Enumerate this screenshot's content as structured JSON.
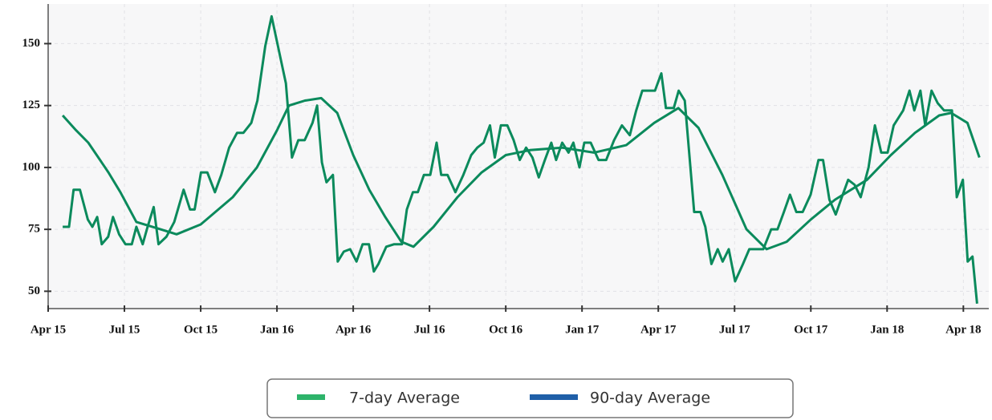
{
  "chart_data": {
    "type": "line",
    "xlim": [
      0,
      37
    ],
    "ylim": [
      43,
      166
    ],
    "xticks": [
      {
        "value": 0,
        "label": "Apr 15"
      },
      {
        "value": 3,
        "label": "Jul 15"
      },
      {
        "value": 6,
        "label": "Oct 15"
      },
      {
        "value": 9,
        "label": "Jan 16"
      },
      {
        "value": 12,
        "label": "Apr 16"
      },
      {
        "value": 15,
        "label": "Jul 16"
      },
      {
        "value": 18,
        "label": "Oct 16"
      },
      {
        "value": 21,
        "label": "Jan 17"
      },
      {
        "value": 24,
        "label": "Apr 17"
      },
      {
        "value": 27,
        "label": "Jul 17"
      },
      {
        "value": 30,
        "label": "Oct 17"
      },
      {
        "value": 33,
        "label": "Jan 18"
      },
      {
        "value": 36,
        "label": "Apr 18"
      }
    ],
    "yticks": [
      50,
      75,
      100,
      125,
      150
    ],
    "grid": true,
    "legend": "bottom",
    "series": [
      {
        "name": "7-day Average",
        "color": "#0b8a5c",
        "legend_swatch_color": "#2db36a",
        "x": [
          0.57,
          0.82,
          1.0,
          1.25,
          1.56,
          1.74,
          1.93,
          2.11,
          2.36,
          2.55,
          2.79,
          3.04,
          3.29,
          3.47,
          3.72,
          3.91,
          4.15,
          4.34,
          4.65,
          4.96,
          5.33,
          5.58,
          5.76,
          6.01,
          6.26,
          6.56,
          6.81,
          7.12,
          7.43,
          7.68,
          7.99,
          8.23,
          8.54,
          8.79,
          9.04,
          9.35,
          9.59,
          9.84,
          10.09,
          10.4,
          10.58,
          10.77,
          10.95,
          11.2,
          11.39,
          11.63,
          11.88,
          12.13,
          12.37,
          12.62,
          12.81,
          12.99,
          13.3,
          13.61,
          13.92,
          14.11,
          14.35,
          14.54,
          14.78,
          15.03,
          15.28,
          15.46,
          15.71,
          16.02,
          16.33,
          16.64,
          16.88,
          17.13,
          17.38,
          17.57,
          17.81,
          18.06,
          18.31,
          18.55,
          18.8,
          19.05,
          19.3,
          19.54,
          19.79,
          19.98,
          20.22,
          20.47,
          20.66,
          20.9,
          21.09,
          21.34,
          21.65,
          21.95,
          22.26,
          22.57,
          22.88,
          23.13,
          23.37,
          23.62,
          23.87,
          24.12,
          24.3,
          24.61,
          24.8,
          25.04,
          25.23,
          25.41,
          25.66,
          25.85,
          26.09,
          26.34,
          26.53,
          26.77,
          27.02,
          27.33,
          27.58,
          27.88,
          28.13,
          28.44,
          28.69,
          28.94,
          29.18,
          29.43,
          29.68,
          29.99,
          30.3,
          30.48,
          30.73,
          30.98,
          31.22,
          31.47,
          31.72,
          31.96,
          32.27,
          32.52,
          32.77,
          33.02,
          33.26,
          33.63,
          33.88,
          34.07,
          34.31,
          34.5,
          34.75,
          34.99,
          35.24,
          35.55,
          35.74,
          35.98,
          36.17,
          36.36,
          36.54
        ],
        "values": [
          76,
          76,
          91,
          91,
          79,
          76,
          80,
          69,
          72,
          80,
          73,
          69,
          69,
          76,
          69,
          76,
          84,
          69,
          72,
          78,
          91,
          83,
          83,
          98,
          98,
          90,
          97,
          108,
          114,
          114,
          118,
          127,
          149,
          161,
          149,
          134,
          104,
          111,
          111,
          118,
          125,
          102,
          94,
          97,
          62,
          66,
          67,
          62,
          69,
          69,
          58,
          61,
          68,
          69,
          69,
          83,
          90,
          90,
          97,
          97,
          110,
          97,
          97,
          90,
          97,
          105,
          108,
          110,
          117,
          104,
          117,
          117,
          111,
          103,
          108,
          104,
          96,
          103,
          110,
          103,
          110,
          106,
          110,
          100,
          110,
          110,
          103,
          103,
          111,
          117,
          113,
          123,
          131,
          131,
          131,
          138,
          124,
          124,
          131,
          127,
          104,
          82,
          82,
          76,
          61,
          67,
          62,
          67,
          54,
          61,
          67,
          67,
          67,
          75,
          75,
          82,
          89,
          82,
          82,
          89,
          103,
          103,
          87,
          81,
          88,
          95,
          93,
          88,
          100,
          117,
          106,
          106,
          117,
          123,
          131,
          123,
          131,
          117,
          131,
          126,
          123,
          123,
          88,
          95,
          62,
          64,
          45
        ]
      },
      {
        "name": "90-day Average",
        "color": "#0b8a5c",
        "legend_swatch_color": "#1f5fa8",
        "x": [
          0.57,
          1.1,
          1.58,
          2.37,
          2.84,
          3.47,
          4.42,
          5.05,
          6.0,
          7.26,
          8.21,
          9.0,
          9.47,
          10.1,
          10.74,
          11.37,
          12.0,
          12.63,
          13.26,
          13.89,
          14.37,
          15.16,
          16.1,
          17.05,
          18.0,
          18.95,
          20.21,
          21.47,
          22.74,
          23.84,
          24.79,
          25.58,
          26.52,
          27.47,
          28.26,
          29.05,
          30.0,
          30.95,
          32.21,
          33.15,
          34.1,
          35.05,
          35.52,
          36.16,
          36.63
        ],
        "values": [
          121,
          115,
          110,
          98,
          90,
          78,
          75,
          73,
          77,
          88,
          100,
          115,
          125,
          127,
          128,
          122,
          105,
          91,
          80,
          70,
          68,
          76,
          88,
          98,
          105,
          107,
          108,
          106,
          109,
          118,
          124,
          116,
          97,
          75,
          67,
          70,
          79,
          87,
          95,
          105,
          114,
          121,
          122,
          118,
          104
        ]
      }
    ]
  }
}
